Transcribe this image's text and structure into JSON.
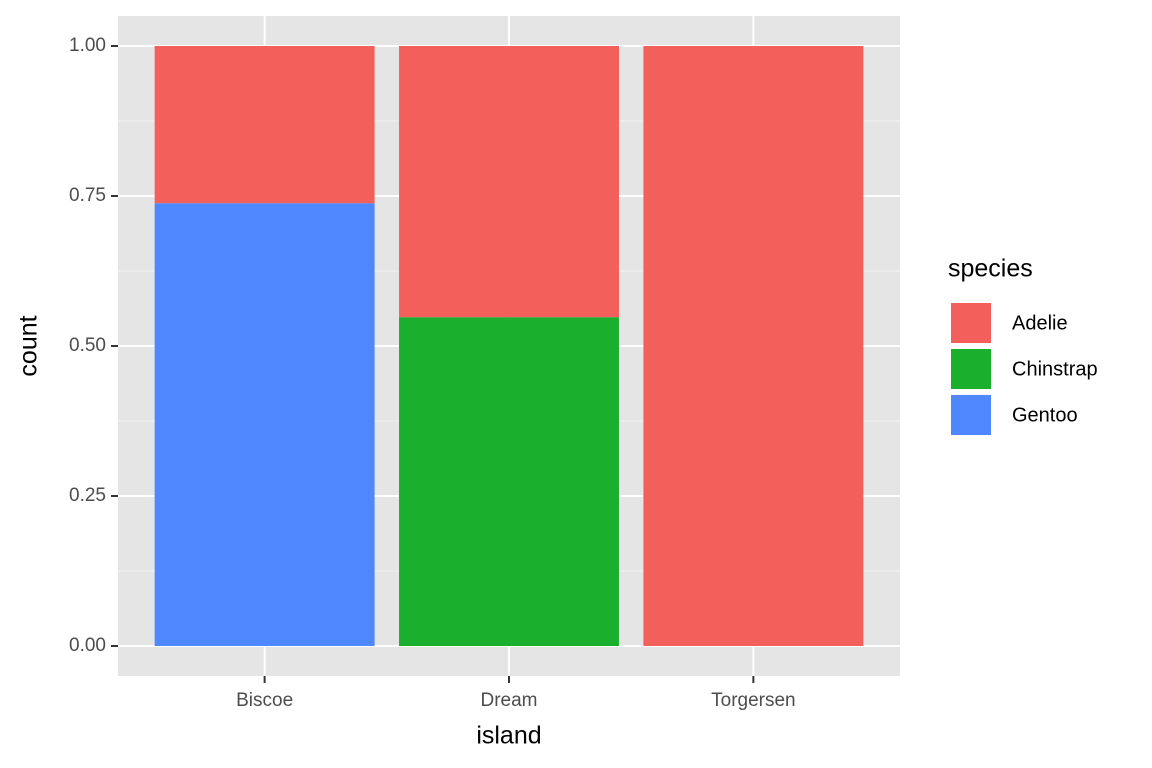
{
  "chart_data": {
    "type": "bar",
    "stacked": true,
    "x_label": "island",
    "y_label": "count",
    "categories": [
      "Biscoe",
      "Dream",
      "Torgersen"
    ],
    "series": [
      {
        "name": "Adelie",
        "color": "#F3605B",
        "values": [
          0.262,
          0.452,
          1
        ]
      },
      {
        "name": "Chinstrap",
        "color": "#1AB02E",
        "values": [
          0,
          0.548,
          0
        ]
      },
      {
        "name": "Gentoo",
        "color": "#4F87FF",
        "values": [
          0.738,
          0,
          0
        ]
      }
    ],
    "ylim": [
      -0.05,
      1.05
    ],
    "yticks": [
      {
        "value": 0,
        "label": "0.00"
      },
      0.25,
      {
        "value": 0.5,
        "label": "0.50"
      },
      0.75,
      {
        "value": 1,
        "label": "1.00"
      }
    ],
    "grid": true,
    "legend_title": "species",
    "legend_position": "right"
  }
}
